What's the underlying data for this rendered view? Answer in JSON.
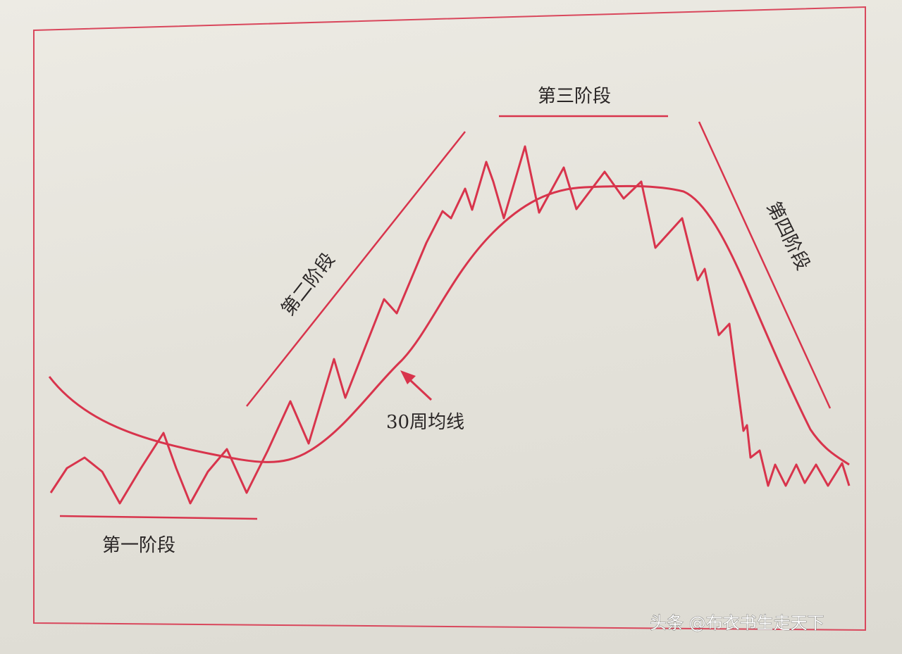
{
  "diagram": {
    "stages": [
      {
        "label": "第一阶段"
      },
      {
        "label": "第二阶段"
      },
      {
        "label": "第三阶段"
      },
      {
        "label": "第四阶段"
      }
    ],
    "ma_label": "30周均线"
  },
  "watermark": "头条 @布衣书生走天下",
  "colors": {
    "line": "#d8344c",
    "border": "#d9475c",
    "paper": "#e6e4dc",
    "text": "#2a2626"
  }
}
